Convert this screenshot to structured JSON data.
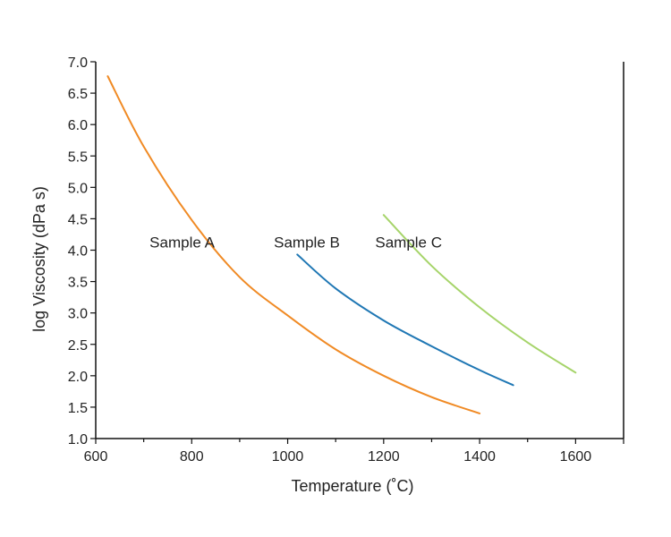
{
  "chart_data": {
    "type": "line",
    "xlabel": "Temperature (˚C)",
    "ylabel": "log Viscosity (dPa s)",
    "xlim": [
      600,
      1700
    ],
    "ylim": [
      1.0,
      7.0
    ],
    "xticks": [
      "600",
      "800",
      "1000",
      "1200",
      "1400",
      "1600"
    ],
    "yticks": [
      "1.0",
      "1.5",
      "2.0",
      "2.5",
      "3.0",
      "3.5",
      "4.0",
      "4.5",
      "5.0",
      "5.5",
      "6.0",
      "6.5",
      "7.0"
    ],
    "grid": false,
    "series": [
      {
        "name": "Sample A",
        "color": "#f08a24",
        "x": [
          625,
          700,
          800,
          900,
          1000,
          1100,
          1200,
          1300,
          1400
        ],
        "y": [
          6.77,
          5.65,
          4.48,
          3.57,
          2.96,
          2.42,
          2.0,
          1.66,
          1.4
        ]
      },
      {
        "name": "Sample B",
        "color": "#1f77b4",
        "x": [
          1020,
          1100,
          1200,
          1300,
          1400,
          1470
        ],
        "y": [
          3.93,
          3.39,
          2.88,
          2.47,
          2.09,
          1.85
        ]
      },
      {
        "name": "Sample C",
        "color": "#a6d46a",
        "x": [
          1200,
          1300,
          1400,
          1500,
          1600
        ],
        "y": [
          4.56,
          3.75,
          3.09,
          2.53,
          2.05
        ]
      }
    ]
  }
}
